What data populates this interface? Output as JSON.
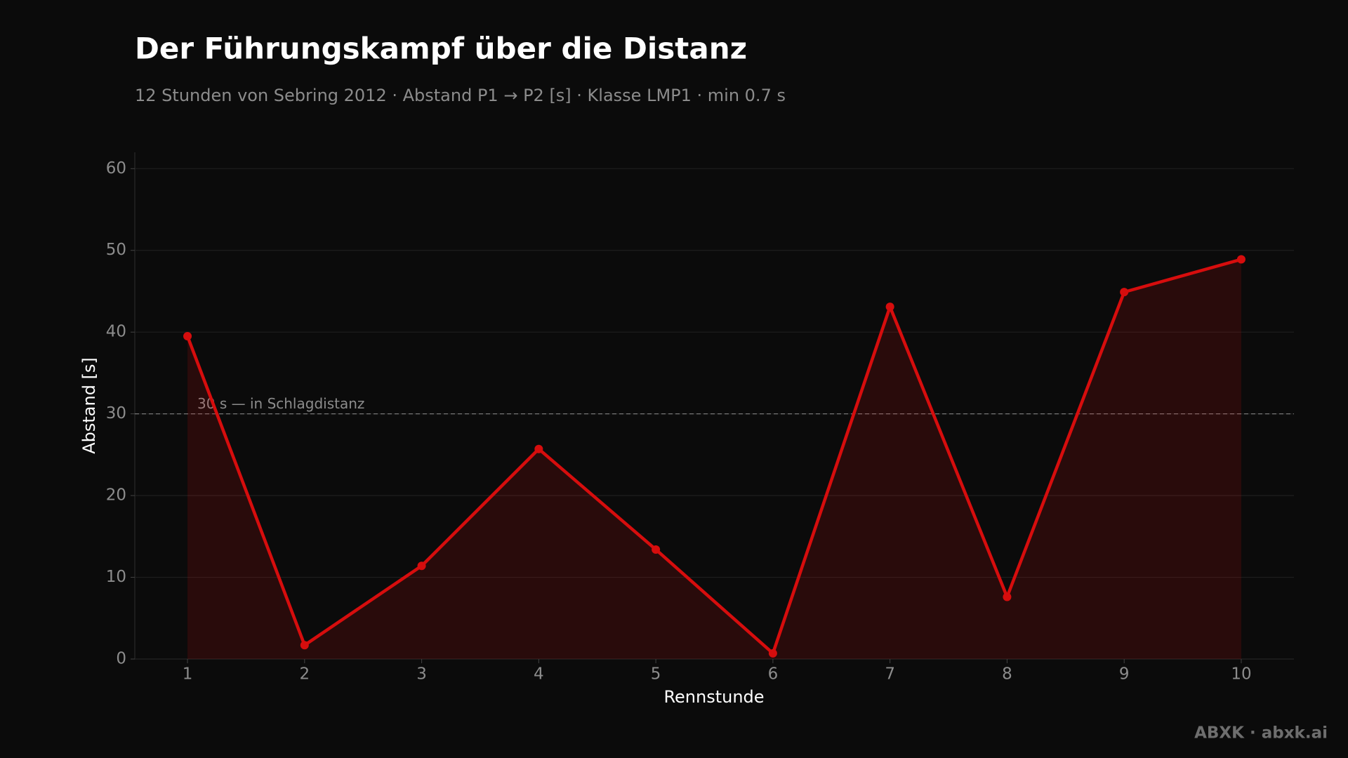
{
  "chart_data": {
    "type": "line",
    "title": "Der Führungskampf über die Distanz",
    "subtitle": "12 Stunden von Sebring 2012 · Abstand P1 → P2 [s] · Klasse LMP1 · min 0.7 s",
    "x_label": "Rennstunde",
    "y_label": "Abstand [s]",
    "x": [
      1,
      2,
      3,
      4,
      5,
      6,
      7,
      8,
      9,
      10
    ],
    "values": [
      39.5,
      1.7,
      11.4,
      25.7,
      13.4,
      0.7,
      43.1,
      7.6,
      44.9,
      48.9
    ],
    "color": "#d60d0d",
    "fill_area": true,
    "xlim": [
      0.55,
      10.45
    ],
    "ylim": [
      0,
      62
    ],
    "xticks": [
      1,
      2,
      3,
      4,
      5,
      6,
      7,
      8,
      9,
      10
    ],
    "yticks": [
      0,
      10,
      20,
      30,
      40,
      50,
      60
    ],
    "grid": true,
    "reference_line": {
      "value": 30,
      "label": "30 s — in Schlagdistanz"
    },
    "footer": "ABXK · abxk.ai"
  }
}
